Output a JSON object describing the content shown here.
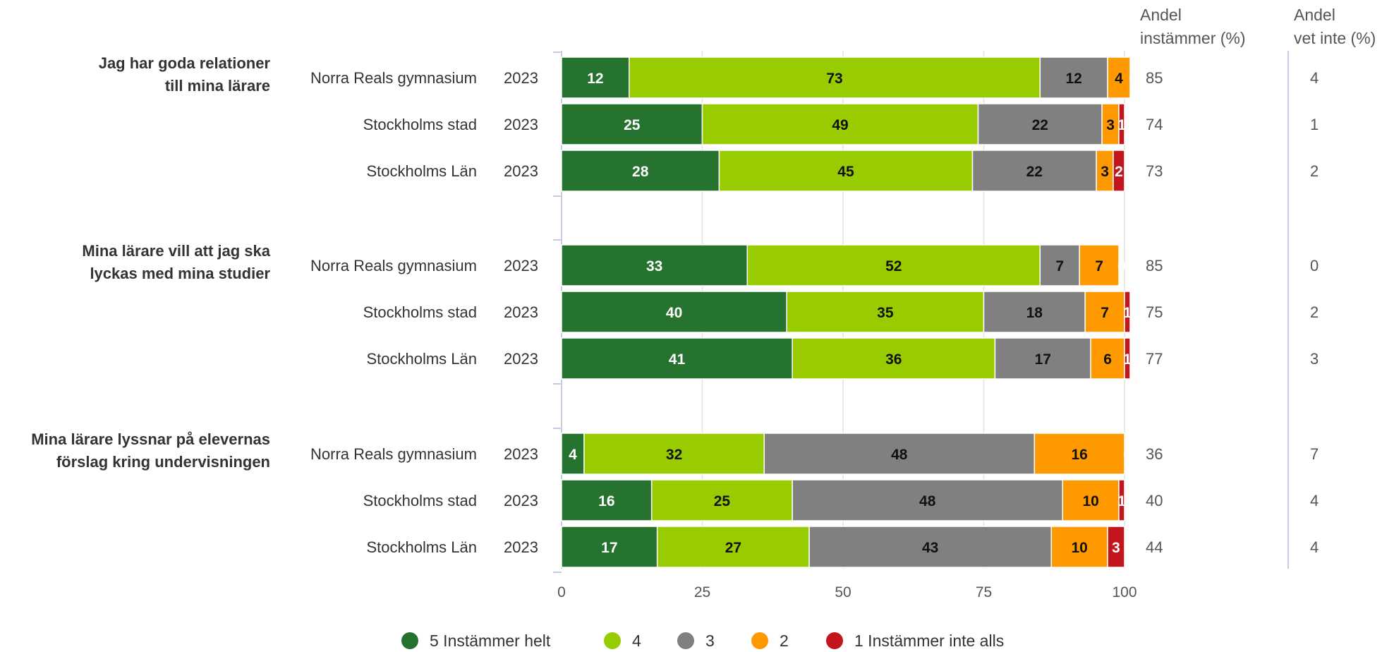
{
  "chart_data": {
    "type": "bar",
    "orientation": "horizontal",
    "stacked": true,
    "xlim": [
      0,
      100
    ],
    "xticks": [
      "0",
      "25",
      "50",
      "75",
      "100"
    ],
    "grid": true,
    "legend_position": "bottom",
    "series": [
      {
        "name": "5 Instämmer helt",
        "color": "#267330",
        "label_color": "#ffffff"
      },
      {
        "name": "4",
        "color": "#99cc00",
        "label_color": "#111111"
      },
      {
        "name": "3",
        "color": "#808080",
        "label_color": "#111111"
      },
      {
        "name": "2",
        "color": "#ff9900",
        "label_color": "#111111"
      },
      {
        "name": "1 Instämmer inte alls",
        "color": "#c3161c",
        "label_color": "#ffffff"
      }
    ],
    "columns": [
      {
        "line1": "Andel",
        "line2": "instämmer (%)"
      },
      {
        "line1": "Andel",
        "line2": "vet inte (%)"
      }
    ],
    "groups": [
      {
        "title_lines": [
          "Jag har goda relationer",
          "till mina lärare"
        ],
        "rows": [
          {
            "label": "Norra Reals gymnasium",
            "year": "2023",
            "values": [
              12,
              73,
              12,
              4,
              0
            ],
            "agree": "85",
            "dont_know": "4"
          },
          {
            "label": "Stockholms stad",
            "year": "2023",
            "values": [
              25,
              49,
              22,
              3,
              1
            ],
            "agree": "74",
            "dont_know": "1"
          },
          {
            "label": "Stockholms Län",
            "year": "2023",
            "values": [
              28,
              45,
              22,
              3,
              2
            ],
            "agree": "73",
            "dont_know": "2"
          }
        ]
      },
      {
        "title_lines": [
          "Mina lärare vill att jag ska",
          "lyckas med mina studier"
        ],
        "rows": [
          {
            "label": "Norra Reals gymnasium",
            "year": "2023",
            "values": [
              33,
              52,
              7,
              7,
              0
            ],
            "agree": "85",
            "dont_know": "0"
          },
          {
            "label": "Stockholms stad",
            "year": "2023",
            "values": [
              40,
              35,
              18,
              7,
              1
            ],
            "agree": "75",
            "dont_know": "2"
          },
          {
            "label": "Stockholms Län",
            "year": "2023",
            "values": [
              41,
              36,
              17,
              6,
              1
            ],
            "agree": "77",
            "dont_know": "3"
          }
        ]
      },
      {
        "title_lines": [
          "Mina lärare lyssnar på elevernas",
          "förslag kring undervisningen"
        ],
        "rows": [
          {
            "label": "Norra Reals gymnasium",
            "year": "2023",
            "values": [
              4,
              32,
              48,
              16,
              0
            ],
            "agree": "36",
            "dont_know": "7"
          },
          {
            "label": "Stockholms stad",
            "year": "2023",
            "values": [
              16,
              25,
              48,
              10,
              1
            ],
            "agree": "40",
            "dont_know": "4"
          },
          {
            "label": "Stockholms Län",
            "year": "2023",
            "values": [
              17,
              27,
              43,
              10,
              3
            ],
            "agree": "44",
            "dont_know": "4"
          }
        ]
      }
    ]
  }
}
